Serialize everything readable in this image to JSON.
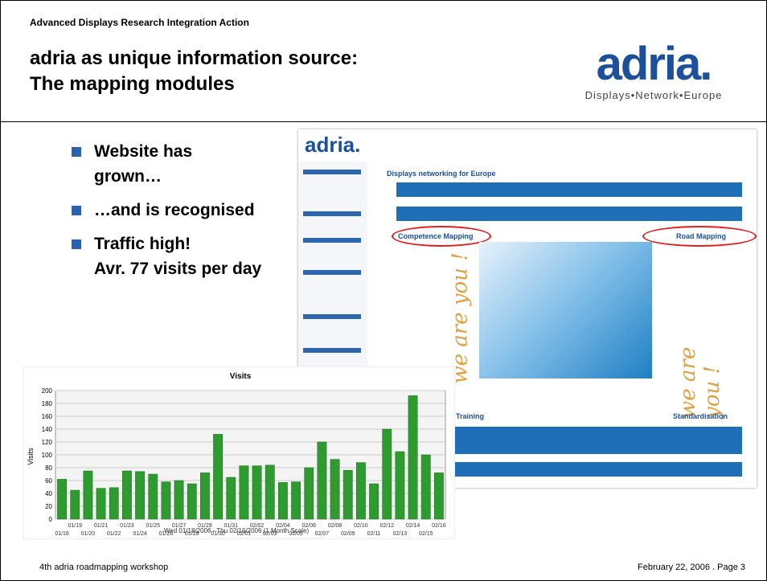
{
  "header": {
    "org": "Advanced Displays Research Integration Action",
    "title_lines": [
      "adria as unique information source:",
      "The mapping modules"
    ]
  },
  "logo": {
    "name": "adria.",
    "tagline": "Displays•Network•Europe"
  },
  "bullets": [
    [
      "Website has",
      "grown…"
    ],
    [
      "…and is recognised"
    ],
    [
      "Traffic high!",
      "Avr. 77 visits per day"
    ]
  ],
  "screenshot": {
    "logo": "adria.",
    "heading": "Displays networking for Europe",
    "left_link": "Competence Mapping",
    "right_link": "Road Mapping",
    "bottom_left": "Training",
    "bottom_right": "Standardisation"
  },
  "chart_data": {
    "type": "bar",
    "title": "Visits",
    "ylabel": "Visits",
    "xlabel": "Wed 01/18/2006 - Thu 02/16/2006 (1 Month Scale)",
    "categories": [
      "01/18",
      "01/19",
      "01/20",
      "01/21",
      "01/22",
      "01/23",
      "01/24",
      "01/25",
      "01/26",
      "01/27",
      "01/28",
      "01/29",
      "01/30",
      "01/31",
      "02/01",
      "02/02",
      "02/03",
      "02/04",
      "02/05",
      "02/06",
      "02/07",
      "02/08",
      "02/09",
      "02/10",
      "02/11",
      "02/12",
      "02/13",
      "02/14",
      "02/15",
      "02/16"
    ],
    "values": [
      62,
      45,
      75,
      48,
      49,
      75,
      74,
      70,
      58,
      60,
      55,
      72,
      132,
      65,
      83,
      83,
      84,
      57,
      58,
      80,
      120,
      93,
      76,
      88,
      55,
      140,
      105,
      192,
      100,
      72
    ],
    "color": "#2f9a2f",
    "ylim": [
      0,
      200
    ],
    "yticks": [
      0,
      20,
      40,
      60,
      80,
      100,
      120,
      140,
      160,
      180,
      200
    ],
    "grid": true
  },
  "footer": {
    "left": "4th adria roadmapping workshop",
    "date": "February 22, 2006",
    "page": "Page 3"
  }
}
